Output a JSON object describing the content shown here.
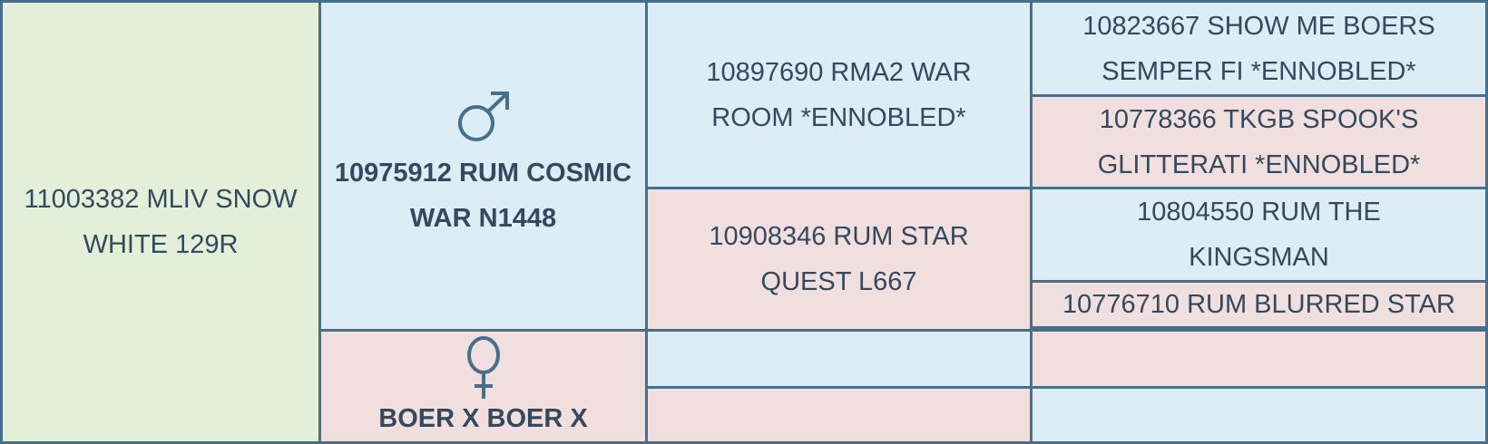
{
  "subject": {
    "name": "11003382 MLIV SNOW WHITE 129R"
  },
  "sire": {
    "symbol": "male-icon",
    "name": "10975912 RUM COSMIC WAR N1448"
  },
  "dam": {
    "symbol": "female-icon",
    "name": "BOER X BOER X"
  },
  "sire_sire": {
    "name": "10897690 RMA2 WAR ROOM *ENNOBLED*"
  },
  "sire_dam": {
    "name": "10908346 RUM STAR QUEST L667"
  },
  "dam_sire": {
    "name": ""
  },
  "dam_dam": {
    "name": ""
  },
  "gen3": [
    {
      "name": "10823667 SHOW ME BOERS SEMPER FI *ENNOBLED*"
    },
    {
      "name": "10778366 TKGB SPOOK'S GLITTERATI *ENNOBLED*"
    },
    {
      "name": "10804550 RUM THE KINGSMAN"
    },
    {
      "name": "10776710 RUM BLURRED STAR"
    },
    {
      "name": ""
    },
    {
      "name": ""
    }
  ],
  "colors": {
    "subject": "#e2efd9",
    "male": "#dcedf5",
    "female": "#f1dfe0",
    "border": "#456f8c",
    "text": "#34495e"
  }
}
